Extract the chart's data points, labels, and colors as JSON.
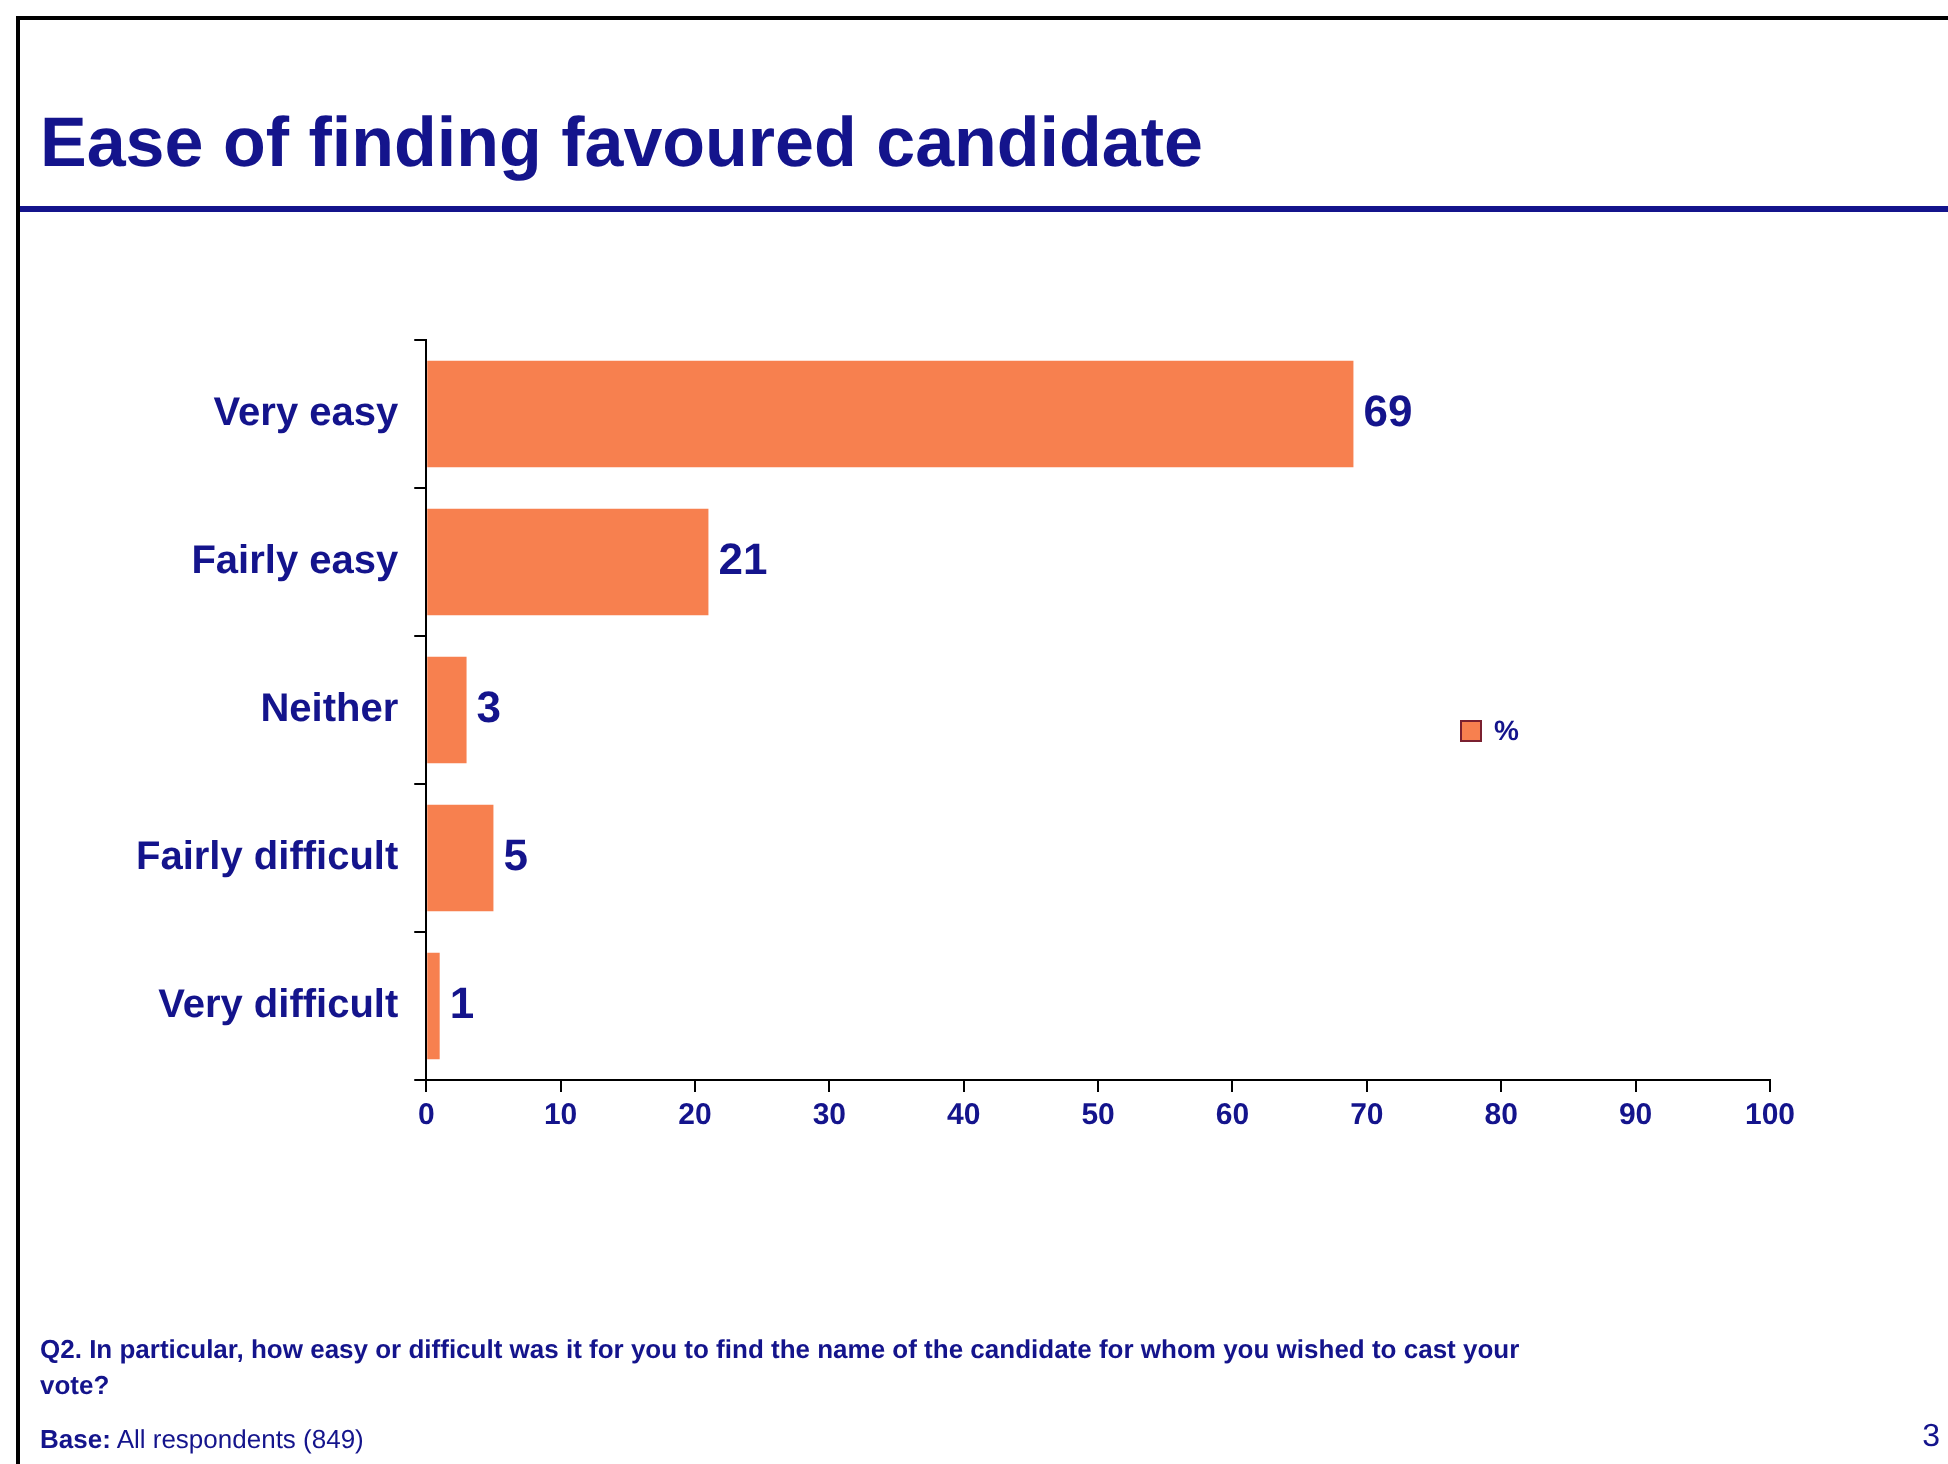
{
  "chart_data": {
    "type": "bar",
    "orientation": "horizontal",
    "title": "Ease of finding favoured candidate",
    "categories": [
      "Very easy",
      "Fairly easy",
      "Neither",
      "Fairly difficult",
      "Very difficult"
    ],
    "series": [
      {
        "name": "%",
        "color": "#f7804f",
        "values": [
          69,
          21,
          3,
          5,
          1
        ]
      }
    ],
    "xlim": [
      0,
      100
    ],
    "xticks": [
      0,
      10,
      20,
      30,
      40,
      50,
      60,
      70,
      80,
      90,
      100
    ],
    "grid": false,
    "legend": "right",
    "data_labels": true,
    "annotations": [
      "Q2. In particular, how easy or difficult was it for you to find the name of the candidate for whom you wished to cast your vote?",
      "Base: All respondents (849)",
      "3"
    ]
  }
}
